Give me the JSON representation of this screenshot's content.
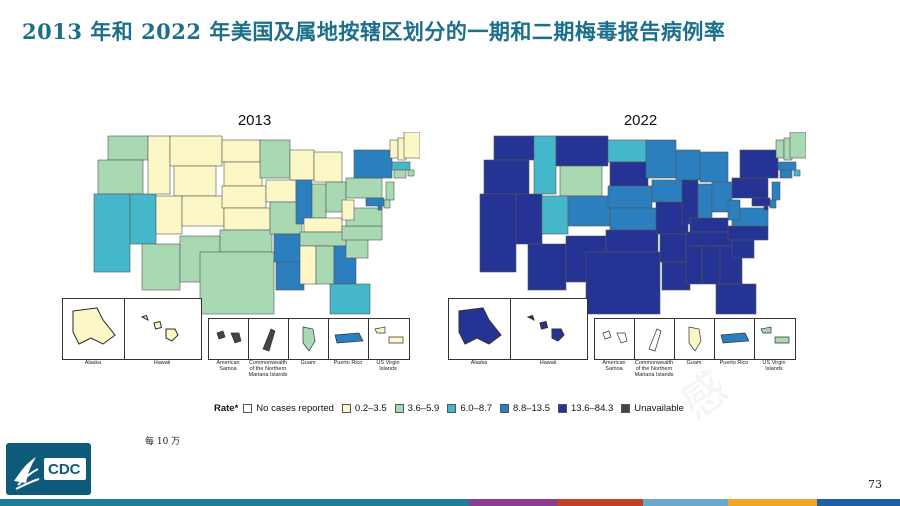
{
  "slide": {
    "title": "2013 年和 2022 年美国及属地按辖区划分的一期和二期梅毒报告病例率",
    "footnote": "每 10 万",
    "page_number": "73"
  },
  "maps": [
    {
      "year": "2013",
      "states": {
        "WA": "c2",
        "OR": "c2",
        "CA": "c3",
        "NV": "c3",
        "ID": "c1",
        "MT": "c1",
        "WY": "c1",
        "UT": "c1",
        "AZ": "c2",
        "CO": "c1",
        "NM": "c2",
        "ND": "c1",
        "SD": "c1",
        "NE": "c1",
        "KS": "c1",
        "OK": "c2",
        "TX": "c2",
        "MN": "c2",
        "IA": "c1",
        "MO": "c2",
        "AR": "c4",
        "LA": "c4",
        "WI": "c1",
        "IL": "c4",
        "MI": "c1",
        "IN": "c2",
        "OH": "c2",
        "KY": "c1",
        "TN": "c2",
        "MS": "c1",
        "AL": "c2",
        "GA": "c4",
        "FL": "c3",
        "SC": "c2",
        "NC": "c2",
        "VA": "c2",
        "WV": "c1",
        "PA": "c2",
        "NY": "c4",
        "VT": "c1",
        "NH": "c1",
        "ME": "c1",
        "MA": "c3",
        "RI": "c2",
        "CT": "c2",
        "NJ": "c2",
        "DE": "c2",
        "MD": "c4",
        "DC": "c4"
      },
      "insets": {
        "alaska": "c1",
        "hawaii": "c1",
        "american_samoa": "c6",
        "cnmi": "c6",
        "guam": "c2",
        "puerto_rico": "c4",
        "usvi": "c1"
      }
    },
    {
      "year": "2022",
      "states": {
        "WA": "c5",
        "OR": "c5",
        "CA": "c5",
        "NV": "c5",
        "ID": "c3",
        "MT": "c5",
        "WY": "c2",
        "UT": "c3",
        "AZ": "c5",
        "CO": "c4",
        "NM": "c5",
        "ND": "c3",
        "SD": "c5",
        "NE": "c4",
        "KS": "c4",
        "OK": "c5",
        "TX": "c5",
        "MN": "c4",
        "IA": "c4",
        "MO": "c5",
        "AR": "c5",
        "LA": "c5",
        "WI": "c4",
        "IL": "c5",
        "MI": "c4",
        "IN": "c4",
        "OH": "c4",
        "KY": "c5",
        "TN": "c5",
        "MS": "c5",
        "AL": "c5",
        "GA": "c5",
        "FL": "c5",
        "SC": "c5",
        "NC": "c5",
        "VA": "c4",
        "WV": "c4",
        "PA": "c5",
        "NY": "c5",
        "VT": "c2",
        "NH": "c2",
        "ME": "c2",
        "MA": "c4",
        "RI": "c3",
        "CT": "c4",
        "NJ": "c4",
        "DE": "c4",
        "MD": "c5",
        "DC": "c5"
      },
      "insets": {
        "alaska": "c5",
        "hawaii": "c5",
        "american_samoa": "c0",
        "cnmi": "c0",
        "guam": "c1",
        "puerto_rico": "c4",
        "usvi": "c2"
      }
    }
  ],
  "inset_labels": {
    "alaska": "Alaska",
    "hawaii": "Hawaii",
    "american_samoa": "American Samoa",
    "cnmi": "Commonwealth of the Northern Mariana Islands",
    "guam": "Guam",
    "puerto_rico": "Puerto Rico",
    "usvi": "US Virgin Islands"
  },
  "legend": {
    "title": "Rate*",
    "items": [
      {
        "key": "c0",
        "label": "No cases reported",
        "color": "#ffffff"
      },
      {
        "key": "c1",
        "label": "0.2–3.5",
        "color": "#fbf7c6"
      },
      {
        "key": "c2",
        "label": "3.6–5.9",
        "color": "#a8d9b2"
      },
      {
        "key": "c3",
        "label": "6.0–8.7",
        "color": "#45b7cb"
      },
      {
        "key": "c4",
        "label": "8.8–13.5",
        "color": "#2b7fbe"
      },
      {
        "key": "c5",
        "label": "13.6–84.3",
        "color": "#253494"
      },
      {
        "key": "c6",
        "label": "Unavailable",
        "color": "#444444"
      }
    ]
  },
  "logo": {
    "text": "CDC"
  },
  "bottom_bar_colors": [
    "#1e7e96",
    "#1e7e96",
    "#1e7e96",
    "#1e7e96",
    "#1e7e96",
    "#1e7e96",
    "#8b3d8f",
    "#c1422b",
    "#6aa8c9",
    "#f0a52a",
    "#1d60a3"
  ]
}
